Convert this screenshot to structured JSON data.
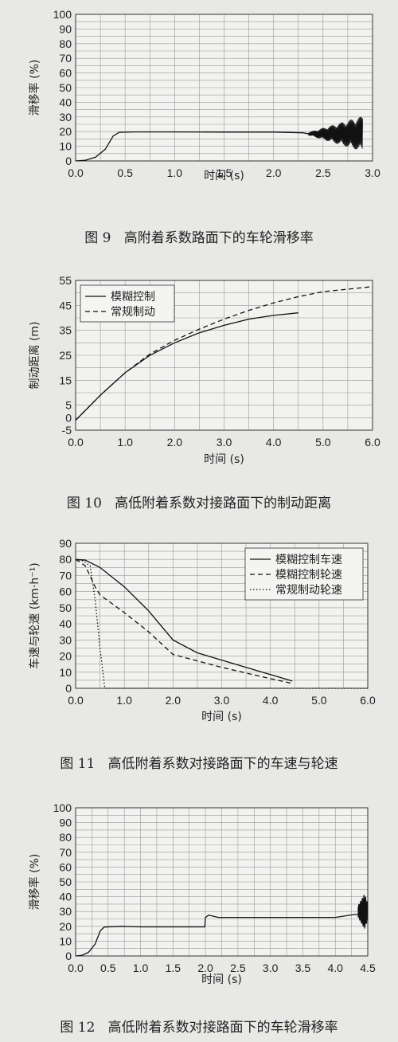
{
  "figures": [
    {
      "caption_num": "图 9",
      "caption_text": "高附着系数路面下的车轮滑移率",
      "chart_data": {
        "type": "line",
        "ylabel": "滑移率 (%)",
        "xlabel": "时间 (s)",
        "xlim": [
          0,
          3
        ],
        "ylim": [
          0,
          100
        ],
        "xticks": [
          "0.0",
          "0.5",
          "1.0",
          "1.5",
          "2.0",
          "2.5",
          "3.0"
        ],
        "yticks": [
          "0",
          "10",
          "20",
          "30",
          "40",
          "50",
          "60",
          "70",
          "80",
          "90",
          "100"
        ],
        "grid": true,
        "legend": "none",
        "series": [
          {
            "name": "",
            "style": "solid",
            "x": [
              0,
              0.1,
              0.2,
              0.3,
              0.38,
              0.44,
              0.6,
              1.0,
              1.5,
              2.0,
              2.3,
              2.35
            ],
            "y": [
              0,
              0.5,
              2.5,
              8,
              17,
              19.5,
              19.8,
              19.8,
              19.7,
              19.7,
              19.2,
              18.5
            ]
          },
          {
            "name": "",
            "style": "oscillation",
            "x": [
              2.35,
              2.5,
              2.6,
              2.7,
              2.8,
              2.9
            ],
            "y": [
              18.5,
              18.5,
              18.5,
              18.5,
              18.5,
              18.5
            ],
            "amplitude": [
              1,
              4,
              6,
              8,
              10,
              12
            ]
          }
        ]
      }
    },
    {
      "caption_num": "图 10",
      "caption_text": "高低附着系数对接路面下的制动距离",
      "chart_data": {
        "type": "line",
        "ylabel": "制动距离 (m)",
        "xlabel": "时间 (s)",
        "xlim": [
          0,
          6
        ],
        "ylim": [
          -5,
          55
        ],
        "xticks": [
          "0.0",
          "1.0",
          "2.0",
          "3.0",
          "4.0",
          "5.0",
          "6.0"
        ],
        "yticks": [
          "-5",
          "0",
          "5",
          "15",
          "25",
          "35",
          "45",
          "55"
        ],
        "grid": true,
        "legend": "top-left",
        "series": [
          {
            "name": "模糊控制",
            "style": "solid",
            "x": [
              0,
              0.5,
              1.0,
              1.5,
              2.0,
              2.5,
              3.0,
              3.5,
              4.0,
              4.5
            ],
            "y": [
              -1,
              9,
              18,
              25,
              30,
              34,
              37,
              39.5,
              41,
              42
            ]
          },
          {
            "name": "常规制动",
            "style": "dashed",
            "x": [
              0,
              0.5,
              1.0,
              1.5,
              2.0,
              2.5,
              3.0,
              3.5,
              4.0,
              4.5,
              5.0,
              5.5,
              6.0
            ],
            "y": [
              -1,
              9,
              18,
              25.5,
              31,
              35.5,
              39.5,
              43,
              46,
              48.5,
              50.5,
              51.5,
              52.5
            ]
          }
        ]
      }
    },
    {
      "caption_num": "图 11",
      "caption_text": "高低附着系数对接路面下的车速与轮速",
      "chart_data": {
        "type": "line",
        "ylabel": "车速与轮速 (km·h⁻¹)",
        "xlabel": "时间 (s)",
        "xlim": [
          0,
          6
        ],
        "ylim": [
          0,
          90
        ],
        "xticks": [
          "0.0",
          "1.0",
          "2.0",
          "3.0",
          "4.0",
          "5.0",
          "6.0"
        ],
        "yticks": [
          "0",
          "10",
          "20",
          "30",
          "40",
          "50",
          "60",
          "70",
          "80",
          "90"
        ],
        "grid": true,
        "legend": "top-right",
        "series": [
          {
            "name": "模糊控制车速",
            "style": "solid",
            "x": [
              0,
              0.2,
              0.5,
              1.0,
              1.5,
              2.0,
              2.5,
              3.0,
              3.5,
              4.0,
              4.45
            ],
            "y": [
              80,
              79.5,
              75,
              63,
              48,
              30,
              22,
              17.5,
              13,
              8.5,
              4.5
            ]
          },
          {
            "name": "模糊控制轮速",
            "style": "dashed",
            "x": [
              0,
              0.2,
              0.4,
              0.5,
              1.0,
              1.5,
              2.0,
              2.5,
              3.0,
              3.5,
              4.0,
              4.45
            ],
            "y": [
              80,
              76,
              63,
              58,
              47,
              35,
              21,
              17,
              13,
              9.5,
              6,
              3
            ]
          },
          {
            "name": "常规制动轮速",
            "style": "dotted",
            "x": [
              0,
              0.15,
              0.3,
              0.4,
              0.5,
              0.6,
              6.0
            ],
            "y": [
              80,
              79,
              76,
              55,
              25,
              0,
              0
            ]
          }
        ]
      }
    },
    {
      "caption_num": "图 12",
      "caption_text": "高低附着系数对接路面下的车轮滑移率",
      "chart_data": {
        "type": "line",
        "ylabel": "滑移率 (%)",
        "xlabel": "时间 (s)",
        "xlim": [
          0,
          4.5
        ],
        "ylim": [
          0,
          100
        ],
        "xticks": [
          "0.0",
          "0.5",
          "1.0",
          "1.5",
          "2.0",
          "2.5",
          "3.0",
          "3.5",
          "4.0",
          "4.5"
        ],
        "yticks": [
          "0",
          "10",
          "20",
          "30",
          "40",
          "50",
          "60",
          "70",
          "80",
          "90",
          "100"
        ],
        "grid": true,
        "legend": "none",
        "series": [
          {
            "name": "",
            "style": "solid",
            "x": [
              0,
              0.1,
              0.2,
              0.3,
              0.38,
              0.44,
              0.7,
              1.0,
              1.5,
              1.99,
              2.0,
              2.05,
              2.2,
              2.5,
              3.0,
              3.5,
              4.0,
              4.3,
              4.35
            ],
            "y": [
              0,
              0.5,
              2.5,
              8,
              17,
              19.5,
              20,
              19.6,
              19.6,
              19.6,
              26,
              27.5,
              26,
              26,
              26,
              26,
              26,
              28,
              28
            ]
          },
          {
            "name": "",
            "style": "oscillation",
            "x": [
              4.35,
              4.4,
              4.45,
              4.5
            ],
            "y": [
              30,
              30,
              30,
              30
            ],
            "amplitude": [
              4,
              8,
              12,
              6
            ]
          }
        ]
      }
    }
  ]
}
